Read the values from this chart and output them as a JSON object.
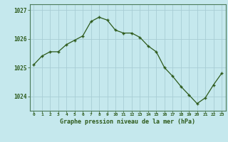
{
  "x": [
    0,
    1,
    2,
    3,
    4,
    5,
    6,
    7,
    8,
    9,
    10,
    11,
    12,
    13,
    14,
    15,
    16,
    17,
    18,
    19,
    20,
    21,
    22,
    23
  ],
  "y": [
    1025.1,
    1025.4,
    1025.55,
    1025.55,
    1025.8,
    1025.95,
    1026.1,
    1026.6,
    1026.75,
    1026.65,
    1026.3,
    1026.2,
    1026.2,
    1026.05,
    1025.75,
    1025.55,
    1025.0,
    1024.7,
    1024.35,
    1024.05,
    1023.75,
    1023.95,
    1024.4,
    1024.8
  ],
  "line_color": "#2d5a1b",
  "marker_color": "#2d5a1b",
  "bg_color": "#c5e8ed",
  "grid_color": "#a8cdd5",
  "axis_label_color": "#2d5a1b",
  "tick_label_color": "#2d5a1b",
  "xlabel": "Graphe pression niveau de la mer (hPa)",
  "ylim": [
    1023.5,
    1027.2
  ],
  "yticks": [
    1024,
    1025,
    1026,
    1027
  ],
  "xlim": [
    -0.5,
    23.5
  ],
  "xticks": [
    0,
    1,
    2,
    3,
    4,
    5,
    6,
    7,
    8,
    9,
    10,
    11,
    12,
    13,
    14,
    15,
    16,
    17,
    18,
    19,
    20,
    21,
    22,
    23
  ]
}
